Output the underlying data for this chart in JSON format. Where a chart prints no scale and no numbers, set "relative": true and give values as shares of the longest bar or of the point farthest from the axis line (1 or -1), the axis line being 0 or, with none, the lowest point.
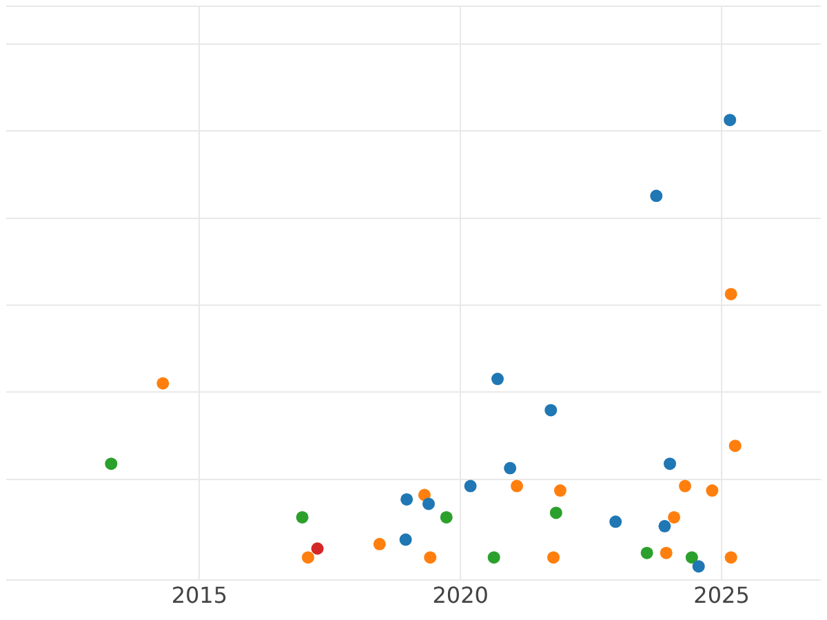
{
  "chart_data": {
    "type": "scatter",
    "relative": true,
    "xlim": [
      2011.3,
      2026.9
    ],
    "xticks": [
      2015,
      2020,
      2025
    ],
    "grid": true,
    "legend": false,
    "marker": "circle",
    "tick_labels": "x",
    "series": [
      {
        "color": "#1f77b4",
        "x": [
          2025.16,
          2023.75,
          2020.71,
          2021.73,
          2024.01,
          2020.95,
          2020.19,
          2018.97,
          2019.39,
          2022.97,
          2023.91,
          2018.95,
          2024.56
        ],
        "values": [
          1,
          0.83,
          0.42,
          0.35,
          0.23,
          0.22,
          0.18,
          0.15,
          0.14,
          0.1,
          0.09,
          0.06,
          0
        ]
      },
      {
        "color": "#ff7f0e",
        "x": [
          2014.3,
          2025.18,
          2025.26,
          2019.31,
          2021.08,
          2021.91,
          2024.3,
          2024.82,
          2024.09,
          2018.45,
          2017.08,
          2019.42,
          2021.78,
          2023.94,
          2025.18
        ],
        "values": [
          0.41,
          0.61,
          0.27,
          0.16,
          0.18,
          0.17,
          0.18,
          0.17,
          0.11,
          0.05,
          0.02,
          0.02,
          0.02,
          0.03,
          0.02
        ]
      },
      {
        "color": "#2ca02c",
        "x": [
          2013.31,
          2016.97,
          2019.73,
          2021.83,
          2020.64,
          2023.57,
          2024.43
        ],
        "values": [
          0.23,
          0.11,
          0.11,
          0.12,
          0.02,
          0.03,
          0.02
        ]
      },
      {
        "color": "#d62728",
        "x": [
          2017.26
        ],
        "values": [
          0.04
        ]
      }
    ]
  }
}
